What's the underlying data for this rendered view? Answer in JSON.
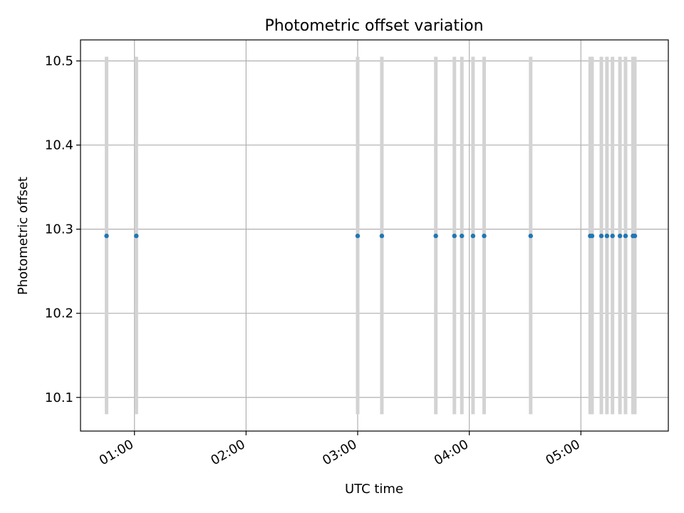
{
  "chart_data": {
    "type": "scatter",
    "title": "Photometric offset variation",
    "xlabel": "UTC time",
    "ylabel": "Photometric offset",
    "x_axis_type": "time",
    "xlim": [
      "00:31",
      "05:47"
    ],
    "ylim": [
      10.06,
      10.525
    ],
    "x_ticks": [
      "01:00",
      "02:00",
      "03:00",
      "04:00",
      "05:00"
    ],
    "y_ticks": [
      10.1,
      10.2,
      10.3,
      10.4,
      10.5
    ],
    "y_tick_labels": [
      "10.1",
      "10.2",
      "10.3",
      "10.4",
      "10.5"
    ],
    "grid": true,
    "series": [
      {
        "x": [
          "00:45",
          "01:01",
          "03:00",
          "03:13",
          "03:42",
          "03:52",
          "03:56",
          "04:02",
          "04:08",
          "04:33",
          "05:05",
          "05:06",
          "05:11",
          "05:14",
          "05:17",
          "05:21",
          "05:24",
          "05:28",
          "05:29"
        ],
        "y": [
          10.292,
          10.292,
          10.292,
          10.292,
          10.292,
          10.292,
          10.292,
          10.292,
          10.292,
          10.292,
          10.292,
          10.292,
          10.292,
          10.292,
          10.292,
          10.292,
          10.292,
          10.292,
          10.292
        ],
        "yerr_low": [
          10.08,
          10.08,
          10.08,
          10.08,
          10.08,
          10.08,
          10.08,
          10.08,
          10.08,
          10.08,
          10.08,
          10.08,
          10.08,
          10.08,
          10.08,
          10.08,
          10.08,
          10.08,
          10.08
        ],
        "yerr_high": [
          10.505,
          10.505,
          10.505,
          10.505,
          10.505,
          10.505,
          10.505,
          10.505,
          10.505,
          10.505,
          10.505,
          10.505,
          10.505,
          10.505,
          10.505,
          10.505,
          10.505,
          10.505,
          10.505
        ]
      }
    ],
    "colors": {
      "points": "#1f77b4",
      "errorbars": "#d3d3d3",
      "grid": "#b0b0b0"
    }
  }
}
